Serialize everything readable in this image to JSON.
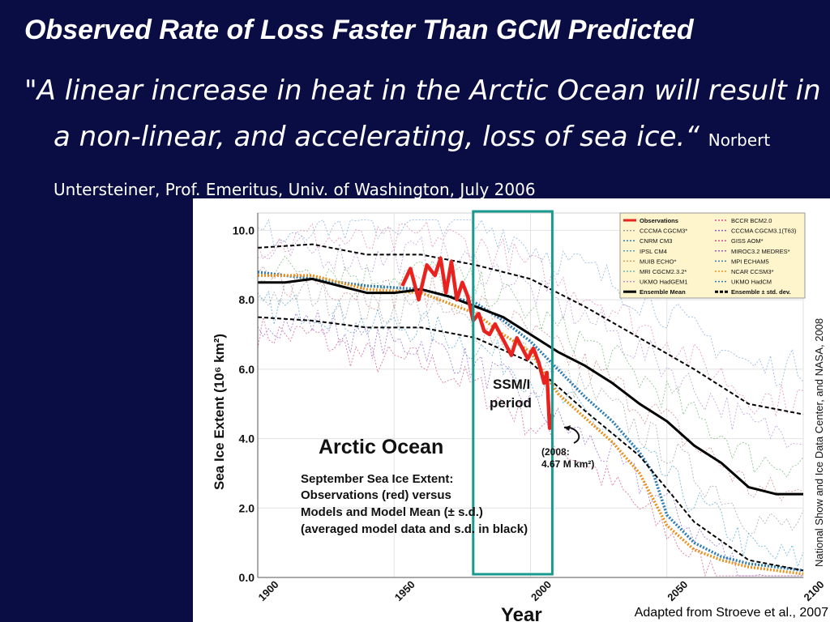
{
  "slide": {
    "title": "Observed Rate of Loss Faster Than GCM Predicted",
    "quote": "\"A linear increase in heat in the Arctic Ocean will result in a non-linear, and accelerating, loss of sea ice.“",
    "attribution": "Norbert Untersteiner, Prof. Emeritus, Univ. of Washington, July 2006",
    "credit": "Adapted from Stroeve et al., 2007"
  },
  "colors": {
    "background": "#0a0c44",
    "observations": "#e8231f",
    "highlight_box": "#1a9a8e",
    "ensemble_mean": "#000000"
  },
  "chart_data": {
    "type": "line",
    "xlabel": "Year",
    "ylabel": "Sea Ice Extent (10⁶ km²)",
    "xlim": [
      1900,
      2100
    ],
    "ylim": [
      0,
      10.5
    ],
    "x_ticks": [
      "1900",
      "1950",
      "2000",
      "2050",
      "2100"
    ],
    "y_ticks": [
      "10.0",
      "8.0",
      "6.0",
      "4.0",
      "2.0",
      "0.0"
    ],
    "grid": true,
    "legend_position": "top-right",
    "legend": [
      [
        "Observations",
        "BCCR BCM2.0"
      ],
      [
        "CCCMA CGCM3*",
        "CCCMA CGCM3.1(T63)"
      ],
      [
        "CNRM CM3",
        "GISS AOM*"
      ],
      [
        "IPSL CM4",
        "MIROC3.2 MEDRES*"
      ],
      [
        "MUIB ECHO*",
        "MPI ECHAM5"
      ],
      [
        "MRI CGCM2.3.2*",
        "NCAR CCSM3*"
      ],
      [
        "UKMO HadGEM1",
        "UKMO HadCM"
      ],
      [
        "Ensemble Mean",
        "Ensemble ± std. dev."
      ]
    ],
    "annotations": {
      "panel_title": "Arctic Ocean",
      "caption_lines": [
        "September Sea Ice Extent:",
        "Observations (red) versus",
        "Models and Model Mean (± s.d.)",
        "(averaged model data and s.d. in black)"
      ],
      "period_label": "SSM/I period",
      "obs_2008": "(2008: 4.67 M km²)",
      "side_credit": "National Show and Ice Data Center, and NASA, 2008"
    },
    "highlight_range": [
      1979,
      2008
    ],
    "series": [
      {
        "name": "Observations",
        "color": "#e8231f",
        "x": [
          1953,
          1956,
          1959,
          1962,
          1965,
          1967,
          1969,
          1971,
          1973,
          1975,
          1977,
          1979,
          1981,
          1983,
          1985,
          1987,
          1989,
          1991,
          1993,
          1995,
          1997,
          1999,
          2001,
          2003,
          2005,
          2006,
          2007,
          2008
        ],
        "y": [
          8.4,
          8.9,
          8.0,
          9.0,
          8.7,
          9.2,
          8.2,
          9.1,
          8.0,
          8.5,
          8.1,
          7.4,
          7.6,
          7.1,
          7.0,
          7.3,
          7.0,
          6.7,
          6.4,
          6.9,
          6.6,
          6.3,
          6.6,
          6.2,
          5.6,
          5.9,
          4.3,
          4.7
        ]
      },
      {
        "name": "Ensemble Mean",
        "color": "#000000",
        "x": [
          1900,
          1910,
          1920,
          1930,
          1940,
          1950,
          1960,
          1970,
          1980,
          1990,
          2000,
          2010,
          2020,
          2030,
          2040,
          2050,
          2060,
          2070,
          2080,
          2090,
          2100
        ],
        "y": [
          8.5,
          8.5,
          8.6,
          8.4,
          8.2,
          8.2,
          8.3,
          8.1,
          7.8,
          7.5,
          7.0,
          6.5,
          6.1,
          5.6,
          5.0,
          4.5,
          3.8,
          3.3,
          2.6,
          2.4,
          2.4
        ]
      },
      {
        "name": "Ensemble + std. dev.",
        "color": "#000000",
        "x": [
          1900,
          1920,
          1940,
          1960,
          1980,
          2000,
          2020,
          2040,
          2060,
          2080,
          2100
        ],
        "y": [
          9.5,
          9.6,
          9.3,
          9.3,
          9.0,
          8.6,
          7.8,
          6.9,
          6.0,
          5.0,
          4.7
        ]
      },
      {
        "name": "Ensemble − std. dev.",
        "color": "#000000",
        "x": [
          1900,
          1920,
          1940,
          1960,
          1980,
          2000,
          2020,
          2040,
          2060,
          2080,
          2100
        ],
        "y": [
          7.5,
          7.4,
          7.2,
          7.2,
          6.9,
          6.2,
          4.8,
          3.5,
          1.6,
          0.5,
          0.2
        ]
      },
      {
        "name": "CNRM CM3",
        "color": "#2c7bb6",
        "x": [
          1900,
          1920,
          1940,
          1960,
          1980,
          1990,
          2000,
          2010,
          2020,
          2030,
          2040,
          2045,
          2050,
          2060,
          2070,
          2080,
          2090,
          2100
        ],
        "y": [
          8.8,
          8.6,
          8.4,
          8.3,
          7.9,
          7.4,
          6.8,
          6.0,
          5.2,
          4.5,
          3.6,
          3.0,
          1.8,
          1.0,
          0.6,
          0.4,
          0.3,
          0.2
        ]
      },
      {
        "name": "NCAR CCSM3*",
        "color": "#e8901c",
        "x": [
          1900,
          1920,
          1940,
          1960,
          1980,
          1990,
          2000,
          2010,
          2020,
          2030,
          2040,
          2050,
          2060,
          2070,
          2080,
          2090,
          2100
        ],
        "y": [
          8.7,
          8.7,
          8.3,
          8.2,
          7.6,
          7.0,
          6.5,
          5.3,
          4.6,
          3.9,
          3.0,
          1.5,
          0.8,
          0.5,
          0.3,
          0.2,
          0.1
        ]
      }
    ]
  }
}
